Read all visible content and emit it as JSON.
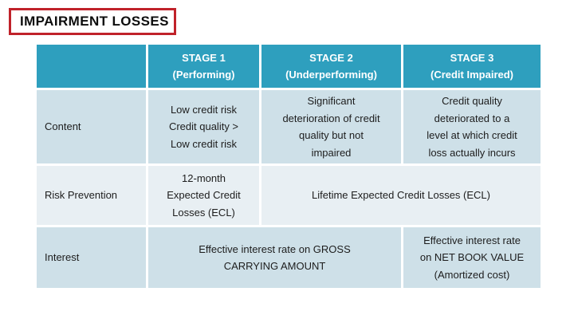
{
  "slide": {
    "title": "IMPAIRMENT LOSSES"
  },
  "colors": {
    "header_bg": "#2E9FBE",
    "row_blue": "#CEE0E8",
    "row_pale": "#E8EFF3",
    "title_border_red": "#C0222A",
    "header_text": "#FFFFFF",
    "body_text": "#1D1D1D"
  },
  "table": {
    "columns": [
      {
        "header_line1": "",
        "header_line2": ""
      },
      {
        "header_line1": "STAGE 1",
        "header_line2": "(Performing)"
      },
      {
        "header_line1": "STAGE 2",
        "header_line2": "(Underperforming)"
      },
      {
        "header_line1": "STAGE 3",
        "header_line2": "(Credit Impaired)"
      }
    ],
    "rows": [
      {
        "label": "Content",
        "cells": [
          {
            "text": "Low credit risk\nCredit quality >\nLow credit risk",
            "colspan": 1
          },
          {
            "text": "Significant\ndeterioration of credit\nquality but not\nimpaired",
            "colspan": 1
          },
          {
            "text": "Credit quality\ndeteriorated to a\nlevel at which credit\nloss actually incurs",
            "colspan": 1
          }
        ]
      },
      {
        "label": "Risk Prevention",
        "cells": [
          {
            "text": "12-month\nExpected Credit\nLosses (ECL)",
            "colspan": 1
          },
          {
            "text": "Lifetime Expected Credit Losses (ECL)",
            "colspan": 2
          }
        ]
      },
      {
        "label": "Interest",
        "cells": [
          {
            "text": "Effective interest rate on GROSS\nCARRYING AMOUNT",
            "colspan": 2
          },
          {
            "text": "Effective interest rate\non NET BOOK VALUE\n(Amortized cost)",
            "colspan": 1
          }
        ]
      }
    ]
  }
}
